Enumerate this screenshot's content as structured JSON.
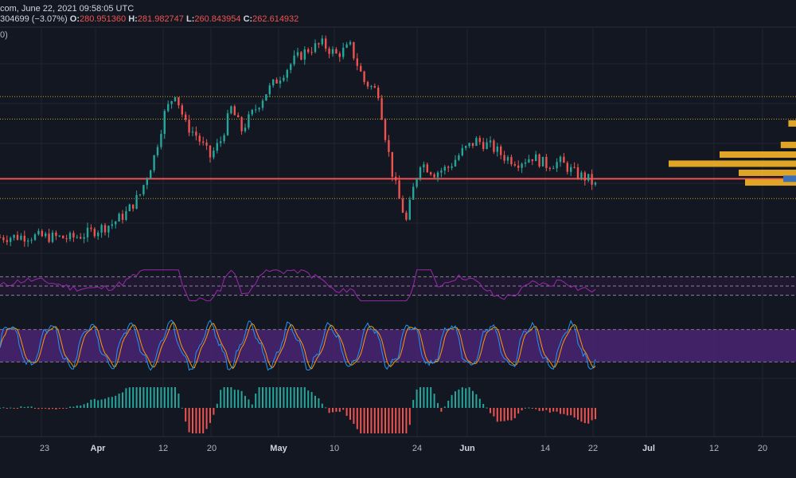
{
  "header": {
    "line1_text": "com, June 22, 2021 09:58:05 UTC",
    "change_text": "304699 (−3.07%)",
    "o_label": "O:",
    "o_value": "280.951360",
    "h_label": "H:",
    "h_value": "281.982747",
    "l_label": "L:",
    "l_value": "260.843954",
    "c_label": "C:",
    "c_value": "262.614932"
  },
  "indicator_fragment": "0)",
  "x_axis": {
    "labels": [
      {
        "text": "23",
        "bold": false
      },
      {
        "text": "Apr",
        "bold": true
      },
      {
        "text": "12",
        "bold": false
      },
      {
        "text": "20",
        "bold": false
      },
      {
        "text": "May",
        "bold": true
      },
      {
        "text": "10",
        "bold": false
      },
      {
        "text": "24",
        "bold": false
      },
      {
        "text": "Jun",
        "bold": true
      },
      {
        "text": "14",
        "bold": false
      },
      {
        "text": "22",
        "bold": false
      },
      {
        "text": "Jul",
        "bold": true
      },
      {
        "text": "12",
        "bold": false
      },
      {
        "text": "20",
        "bold": false
      }
    ]
  },
  "colors": {
    "background": "#131722",
    "up": "#26a69a",
    "down": "#ef5350",
    "support_line": "#ef5350",
    "dotted_levels": "#c9a227",
    "volume_profile": "#e0a526",
    "rsi": "#9c27b0",
    "stoch_k": "#2196f3",
    "stoch_d": "#ff9800",
    "stoch_band": "#4a2472",
    "grid": "#1f2430"
  },
  "chart_data": {
    "type": "candlestick",
    "title": "",
    "x_labels": [
      "23",
      "Apr",
      "12",
      "20",
      "May",
      "10",
      "24",
      "Jun",
      "14",
      "22",
      "Jul",
      "12",
      "20"
    ],
    "close_path": [
      [
        0,
        150
      ],
      [
        8,
        152
      ],
      [
        16,
        150
      ],
      [
        20,
        148
      ],
      [
        24,
        155
      ],
      [
        28,
        165
      ],
      [
        32,
        175
      ],
      [
        36,
        195
      ],
      [
        40,
        230
      ],
      [
        44,
        300
      ],
      [
        47,
        380
      ],
      [
        50,
        420
      ],
      [
        53,
        360
      ],
      [
        56,
        340
      ],
      [
        60,
        300
      ],
      [
        63,
        330
      ],
      [
        66,
        390
      ],
      [
        69,
        350
      ],
      [
        72,
        380
      ],
      [
        76,
        420
      ],
      [
        80,
        450
      ],
      [
        84,
        480
      ],
      [
        88,
        500
      ],
      [
        92,
        510
      ],
      [
        96,
        490
      ],
      [
        100,
        505
      ],
      [
        104,
        440
      ],
      [
        108,
        420
      ],
      [
        110,
        340
      ],
      [
        112,
        270
      ],
      [
        114,
        220
      ],
      [
        116,
        180
      ],
      [
        118,
        240
      ],
      [
        120,
        290
      ],
      [
        124,
        270
      ],
      [
        128,
        280
      ],
      [
        132,
        310
      ],
      [
        136,
        330
      ],
      [
        140,
        320
      ],
      [
        144,
        300
      ],
      [
        148,
        290
      ],
      [
        152,
        300
      ],
      [
        156,
        285
      ],
      [
        160,
        290
      ],
      [
        164,
        270
      ],
      [
        168,
        258
      ],
      [
        170,
        246
      ]
    ],
    "price_range": [
      120,
      540
    ],
    "horizontal_levels": [
      {
        "value": 412,
        "style": "dotted"
      },
      {
        "value": 370,
        "style": "dotted"
      },
      {
        "value": 259,
        "style": "solid"
      },
      {
        "value": 222,
        "style": "dotted"
      }
    ],
    "volume_profile_bars": [
      {
        "price": 362,
        "size": 0.06
      },
      {
        "price": 322,
        "size": 0.12
      },
      {
        "price": 304,
        "size": 0.6
      },
      {
        "price": 287,
        "size": 1.0
      },
      {
        "price": 270,
        "size": 0.45
      },
      {
        "price": 252,
        "size": 0.4
      }
    ],
    "rsi_levels": [
      70,
      50,
      30
    ],
    "stoch_levels": [
      80,
      20
    ]
  }
}
